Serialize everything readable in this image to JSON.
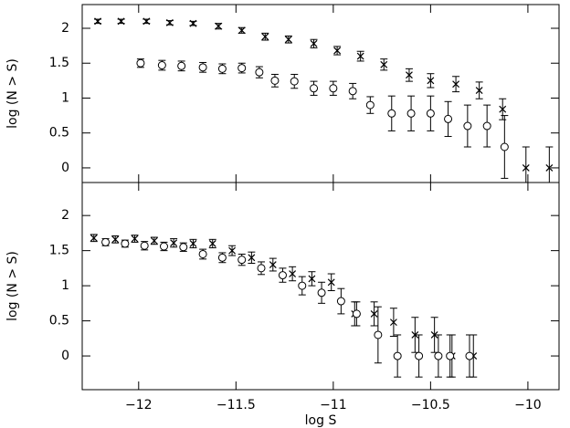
{
  "chart_data": [
    {
      "type": "scatter",
      "ylabel": "log (N > S)",
      "xlim": [
        -12.29,
        -9.84
      ],
      "ylim": [
        -0.21,
        2.34
      ],
      "xticks": [
        -12,
        -11.5,
        -11,
        -10.5,
        -10
      ],
      "yticks": [
        0,
        0.5,
        1,
        1.5,
        2
      ],
      "series": [
        {
          "marker": "x",
          "color": "#000000",
          "x": [
            -12.21,
            -12.09,
            -11.96,
            -11.84,
            -11.72,
            -11.59,
            -11.47,
            -11.35,
            -11.23,
            -11.1,
            -10.98,
            -10.86,
            -10.74,
            -10.61,
            -10.5,
            -10.37,
            -10.25,
            -10.13,
            -10.01,
            -9.89
          ],
          "values": [
            2.1,
            2.1,
            2.1,
            2.08,
            2.07,
            2.03,
            1.97,
            1.88,
            1.84,
            1.78,
            1.68,
            1.6,
            1.48,
            1.33,
            1.25,
            1.2,
            1.11,
            0.84,
            0,
            0
          ],
          "errors": [
            0.03,
            0.03,
            0.03,
            0.03,
            0.03,
            0.04,
            0.04,
            0.05,
            0.05,
            0.06,
            0.06,
            0.07,
            0.08,
            0.09,
            0.1,
            0.11,
            0.12,
            0.15,
            0.3,
            0.3
          ]
        },
        {
          "marker": "o",
          "color": "#000000",
          "x": [
            -11.99,
            -11.88,
            -11.78,
            -11.67,
            -11.57,
            -11.47,
            -11.38,
            -11.3,
            -11.2,
            -11.1,
            -11.0,
            -10.9,
            -10.81,
            -10.7,
            -10.6,
            -10.5,
            -10.41,
            -10.31,
            -10.21,
            -10.12
          ],
          "values": [
            1.5,
            1.47,
            1.46,
            1.44,
            1.42,
            1.43,
            1.37,
            1.25,
            1.24,
            1.14,
            1.14,
            1.1,
            0.9,
            0.78,
            0.78,
            0.78,
            0.7,
            0.6,
            0.6,
            0.3
          ],
          "errors": [
            0.06,
            0.07,
            0.07,
            0.07,
            0.07,
            0.07,
            0.08,
            0.09,
            0.1,
            0.1,
            0.1,
            0.11,
            0.12,
            0.25,
            0.25,
            0.25,
            0.25,
            0.3,
            0.3,
            0.45
          ]
        }
      ]
    },
    {
      "type": "scatter",
      "ylabel": "log (N > S)",
      "xlabel": "log S",
      "xlim": [
        -12.29,
        -9.84
      ],
      "ylim": [
        -0.48,
        2.47
      ],
      "xticks": [
        {
          "value": -12,
          "label": "−12"
        },
        {
          "value": -11.5,
          "label": "−11.5"
        },
        {
          "value": -11,
          "label": "−11"
        },
        {
          "value": -10.5,
          "label": "−10.5"
        },
        {
          "value": -10,
          "label": "−10"
        }
      ],
      "yticks": [
        0,
        0.5,
        1,
        1.5,
        2
      ],
      "series": [
        {
          "marker": "x",
          "color": "#000000",
          "x": [
            -12.23,
            -12.12,
            -12.02,
            -11.92,
            -11.82,
            -11.72,
            -11.62,
            -11.52,
            -11.42,
            -11.31,
            -11.21,
            -11.11,
            -11.01,
            -10.89,
            -10.79,
            -10.69,
            -10.58,
            -10.48,
            -10.39,
            -10.28
          ],
          "values": [
            1.68,
            1.66,
            1.67,
            1.64,
            1.61,
            1.6,
            1.6,
            1.5,
            1.4,
            1.3,
            1.17,
            1.1,
            1.05,
            0.6,
            0.6,
            0.48,
            0.3,
            0.3,
            0,
            0
          ],
          "errors": [
            0.05,
            0.05,
            0.05,
            0.05,
            0.06,
            0.06,
            0.06,
            0.07,
            0.08,
            0.09,
            0.1,
            0.1,
            0.12,
            0.17,
            0.17,
            0.2,
            0.25,
            0.25,
            0.3,
            0.3
          ]
        },
        {
          "marker": "o",
          "color": "#000000",
          "x": [
            -12.17,
            -12.07,
            -11.97,
            -11.87,
            -11.77,
            -11.67,
            -11.57,
            -11.47,
            -11.37,
            -11.26,
            -11.16,
            -11.06,
            -10.96,
            -10.88,
            -10.77,
            -10.67,
            -10.56,
            -10.46,
            -10.4,
            -10.3
          ],
          "values": [
            1.62,
            1.6,
            1.57,
            1.56,
            1.55,
            1.45,
            1.4,
            1.37,
            1.25,
            1.15,
            1.0,
            0.9,
            0.78,
            0.6,
            0.3,
            0,
            0,
            0,
            0,
            0
          ],
          "errors": [
            0.05,
            0.05,
            0.06,
            0.06,
            0.06,
            0.07,
            0.07,
            0.08,
            0.09,
            0.1,
            0.13,
            0.15,
            0.18,
            0.17,
            0.4,
            0.3,
            0.3,
            0.3,
            0.3,
            0.3
          ]
        }
      ]
    }
  ]
}
